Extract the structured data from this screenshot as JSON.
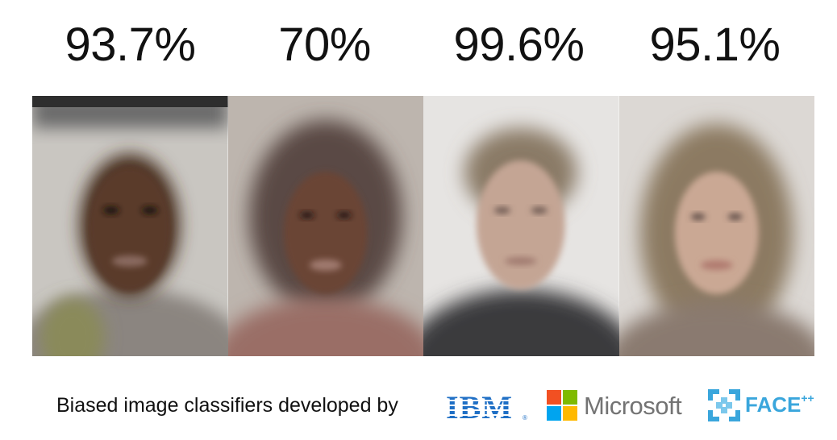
{
  "accuracies": [
    "93.7%",
    "70%",
    "99.6%",
    "95.1%"
  ],
  "caption": "Biased image classifiers developed by",
  "logos": {
    "ibm": "IBM",
    "ibm_mark": "®",
    "microsoft": "Microsoft",
    "face_pp": "FACE",
    "face_pp_suffix": "++"
  },
  "colors": {
    "ibm_blue": "#1f6fc5",
    "ms_red": "#f25022",
    "ms_green": "#7fba00",
    "ms_blue": "#00a4ef",
    "ms_yellow": "#ffb900",
    "face_blue": "#3aa6dc"
  }
}
